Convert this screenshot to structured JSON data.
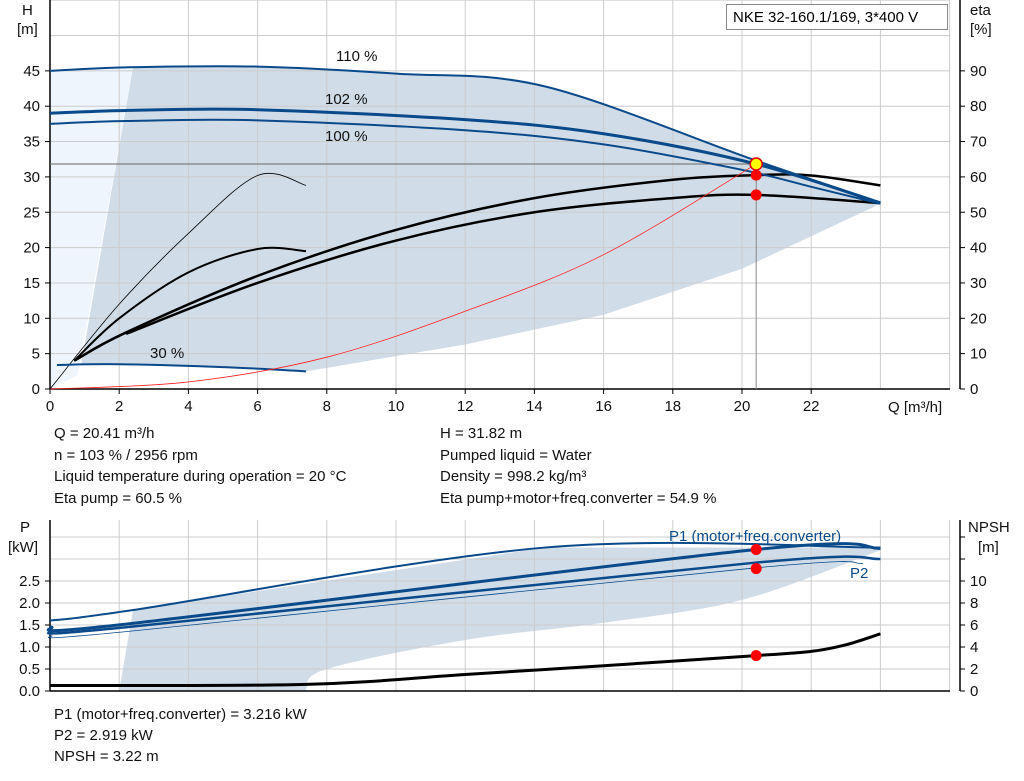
{
  "title": "NKE 32-160.1/169, 3*400 V",
  "info_top": [
    "Q = 20.41 m³/h",
    "n = 103 % / 2956 rpm",
    "Liquid temperature during operation = 20 °C",
    "Eta pump = 60.5 %"
  ],
  "info_top_right": [
    "H = 31.82 m",
    "Pumped liquid = Water",
    "Density = 998.2 kg/m³",
    "Eta pump+motor+freq.converter = 54.9 %"
  ],
  "info_bottom": [
    "P1 (motor+freq.converter) = 3.216 kW",
    "P2 = 2.919 kW",
    "NPSH = 3.22 m"
  ],
  "colors": {
    "curve": "#0a4a8a",
    "shade": "#d0dce8",
    "shade_light": "#eef5fc",
    "system": "#ff2020",
    "point": "#ff0000",
    "op_point": "#ffff00"
  },
  "chart_data": [
    {
      "type": "line",
      "ylabel": "H\n[m]",
      "y2label": "eta\n[%]",
      "xlabel": "Q [m³/h]",
      "xlim": [
        0,
        26
      ],
      "ylim": [
        0,
        55
      ],
      "y2lim": [
        0,
        110
      ],
      "xticks": [
        0,
        2,
        4,
        6,
        8,
        10,
        12,
        14,
        16,
        18,
        20,
        22
      ],
      "yticks": [
        0,
        5,
        10,
        15,
        20,
        25,
        30,
        35,
        40,
        45
      ],
      "y2ticks": [
        0,
        10,
        20,
        30,
        40,
        50,
        60,
        70,
        80,
        90
      ],
      "grid": true,
      "curve_labels": [
        "110 %",
        "102 %",
        "100 %",
        "30 %"
      ],
      "head_curves": [
        {
          "label": "110 %",
          "points": [
            [
              0,
              45.0
            ],
            [
              2.2,
              45.5
            ],
            [
              6,
              45.6
            ],
            [
              10,
              44.6
            ],
            [
              14.3,
              42.8
            ],
            [
              20.41,
              32.3
            ],
            [
              24,
              26.4
            ]
          ]
        },
        {
          "label": "102 %",
          "points": [
            [
              0,
              39.0
            ],
            [
              2.2,
              39.4
            ],
            [
              6,
              39.5
            ],
            [
              12,
              38.1
            ],
            [
              16,
              36.1
            ],
            [
              20.41,
              31.82
            ],
            [
              24,
              26.3
            ]
          ]
        },
        {
          "label": "100 %",
          "points": [
            [
              0,
              37.5
            ],
            [
              2.2,
              37.9
            ],
            [
              6,
              38.0
            ],
            [
              12,
              36.6
            ],
            [
              16,
              34.6
            ],
            [
              20,
              31.0
            ],
            [
              22,
              28.6
            ],
            [
              24,
              26.2
            ]
          ]
        },
        {
          "label": "30 %",
          "points": [
            [
              0.2,
              3.4
            ],
            [
              2,
              3.5
            ],
            [
              5,
              3.1
            ],
            [
              7.4,
              2.5
            ]
          ]
        }
      ],
      "eta_curves_pct": [
        {
          "points": [
            [
              0.7,
              8
            ],
            [
              2.2,
              16
            ],
            [
              6,
              32
            ],
            [
              10,
              45
            ],
            [
              14,
              54
            ],
            [
              18,
              59.2
            ],
            [
              20.41,
              60.5
            ],
            [
              22,
              60.4
            ],
            [
              24,
              57.6
            ]
          ]
        },
        {
          "points": [
            [
              2.2,
              15.6
            ],
            [
              6,
              30
            ],
            [
              10,
              42
            ],
            [
              14,
              50
            ],
            [
              18,
              54
            ],
            [
              20.41,
              54.9
            ],
            [
              24,
              52.6
            ]
          ]
        },
        {
          "points": [
            [
              0,
              0
            ],
            [
              2,
              24
            ],
            [
              4,
              44
            ],
            [
              6,
              60.4
            ],
            [
              7.4,
              57.6
            ]
          ]
        },
        {
          "points": [
            [
              0.7,
              8
            ],
            [
              2,
              20
            ],
            [
              4,
              33
            ],
            [
              6,
              39.6
            ],
            [
              7.4,
              39
            ]
          ]
        }
      ],
      "system_curve": [
        [
          0,
          0
        ],
        [
          4,
          1
        ],
        [
          8,
          4.5
        ],
        [
          12,
          11
        ],
        [
          16,
          19
        ],
        [
          20.41,
          31.82
        ]
      ],
      "operating_point": {
        "Q": 20.41,
        "H": 31.82,
        "eta_pump": 60.5,
        "eta_total": 54.9
      }
    },
    {
      "type": "line",
      "ylabel": "P\n[kW]",
      "y2label": "NPSH\n[m]",
      "xlim": [
        0,
        26
      ],
      "ylim": [
        0,
        3.9
      ],
      "y2lim": [
        0,
        15.5
      ],
      "yticks": [
        0,
        0.5,
        1.0,
        1.5,
        2.0,
        2.5
      ],
      "ytick_labels": [
        "0.0",
        "0.5",
        "1.0",
        "1.5",
        "2.0",
        "2.5"
      ],
      "y2ticks": [
        0,
        2,
        4,
        6,
        8,
        10
      ],
      "grid": true,
      "series_labels": [
        "P1 (motor+freq.converter)",
        "P2"
      ],
      "power_curves": [
        {
          "points": [
            [
              0,
              1.6
            ],
            [
              2.4,
              1.84
            ],
            [
              14.3,
              3.26
            ],
            [
              24,
              3.26
            ]
          ]
        },
        {
          "points": [
            [
              0,
              1.45
            ],
            [
              2.2,
              1.52
            ],
            [
              20.41,
              3.216
            ],
            [
              24,
              3.24
            ]
          ]
        },
        {
          "points": [
            [
              0,
              1.35
            ],
            [
              2.2,
              1.45
            ],
            [
              20.41,
              2.919
            ],
            [
              24,
              3.0
            ]
          ]
        },
        {
          "points": [
            [
              0,
              1.25
            ],
            [
              2.2,
              1.35
            ],
            [
              20.41,
              2.8
            ],
            [
              23.5,
              2.9
            ]
          ]
        }
      ],
      "npsh_curve": [
        [
          0,
          0.5
        ],
        [
          7.4,
          0.6
        ],
        [
          12,
          1.5
        ],
        [
          16,
          2.3
        ],
        [
          20.41,
          3.22
        ],
        [
          22,
          3.6
        ],
        [
          23,
          4.2
        ],
        [
          24,
          5.2
        ]
      ],
      "operating_points": {
        "P1": 3.216,
        "P2": 2.919,
        "NPSH": 3.22
      }
    }
  ]
}
